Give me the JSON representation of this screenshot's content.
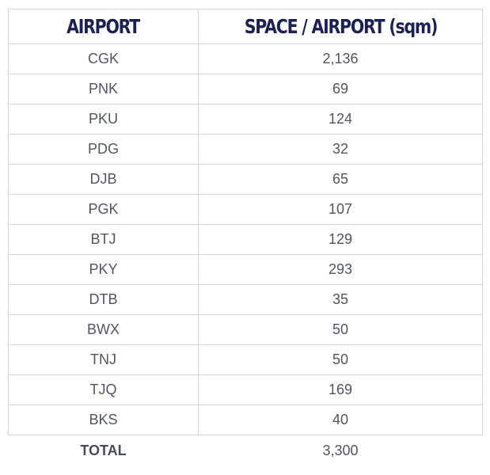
{
  "table": {
    "headers": [
      "AIRPORT",
      "SPACE / AIRPORT (sqm)"
    ],
    "rows": [
      [
        "CGK",
        "2,136"
      ],
      [
        "PNK",
        "69"
      ],
      [
        "PKU",
        "124"
      ],
      [
        "PDG",
        "32"
      ],
      [
        "DJB",
        "65"
      ],
      [
        "PGK",
        "107"
      ],
      [
        "BTJ",
        "129"
      ],
      [
        "PKY",
        "293"
      ],
      [
        "DTB",
        "35"
      ],
      [
        "BWX",
        "50"
      ],
      [
        "TNJ",
        "50"
      ],
      [
        "TJQ",
        "169"
      ],
      [
        "BKS",
        "40"
      ]
    ],
    "total": {
      "label": "TOTAL",
      "value": "3,300"
    }
  },
  "colors": {
    "header_text": "#1d2151",
    "cell_text": "#4f5561",
    "border": "#d4d4d4"
  }
}
